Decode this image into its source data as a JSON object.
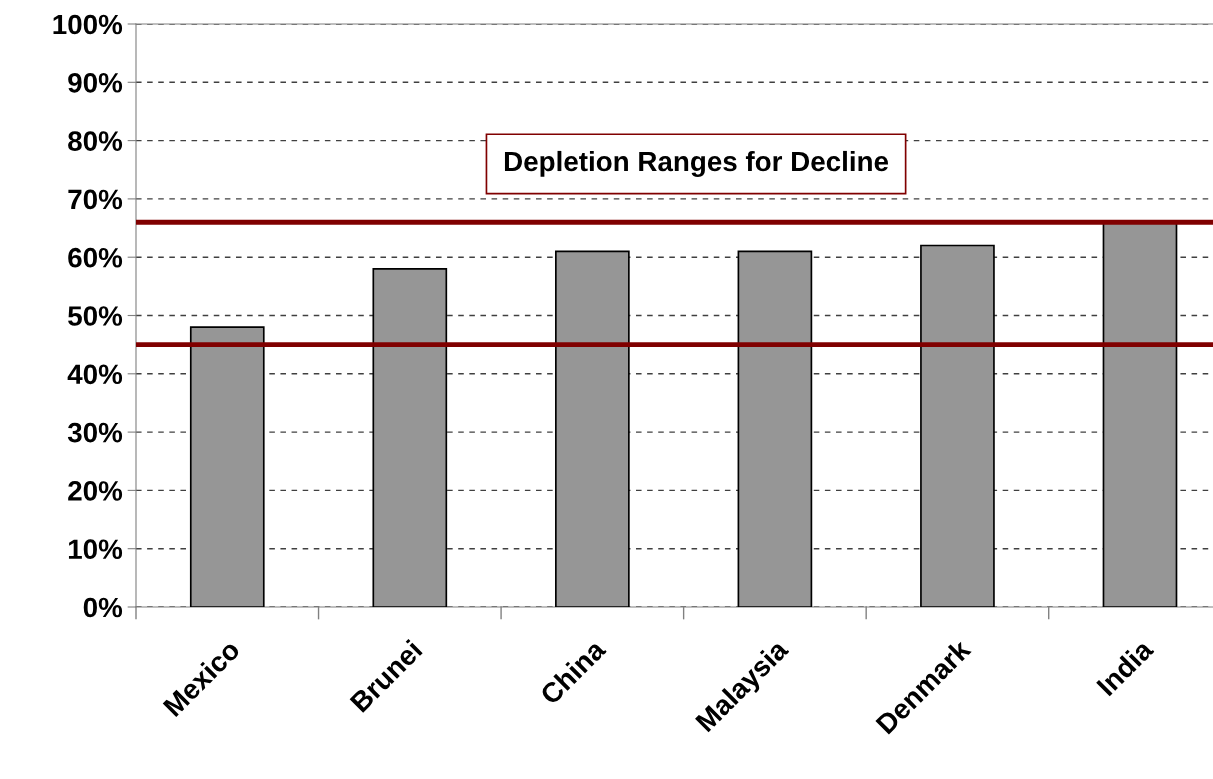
{
  "chart_data": {
    "type": "bar",
    "categories": [
      "Mexico",
      "Brunei",
      "China",
      "Malaysia",
      "Denmark",
      "India"
    ],
    "values": [
      48,
      58,
      61,
      61,
      62,
      66
    ],
    "color": "#969696",
    "ylim": [
      0,
      100
    ],
    "yticks": [
      {
        "value": 0,
        "label": "0%"
      },
      {
        "value": 10,
        "label": "10%"
      },
      {
        "value": 20,
        "label": "20%"
      },
      {
        "value": 30,
        "label": "30%"
      },
      {
        "value": 40,
        "label": "40%"
      },
      {
        "value": 50,
        "label": "50%"
      },
      {
        "value": 60,
        "label": "60%"
      },
      {
        "value": 70,
        "label": "70%"
      },
      {
        "value": 80,
        "label": "80%"
      },
      {
        "value": 90,
        "label": "90%"
      },
      {
        "value": 100,
        "label": "100%"
      }
    ],
    "grid": "y",
    "line_style": "dashed",
    "ref_lines": [
      {
        "axis": "y",
        "value": 45,
        "color": "#800000"
      },
      {
        "axis": "y",
        "value": 66,
        "color": "#800000"
      }
    ],
    "annotations": [
      "Depletion Ranges for Decline"
    ]
  }
}
